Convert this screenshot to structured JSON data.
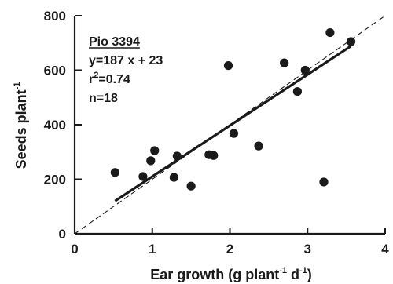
{
  "chart_data": {
    "type": "scatter",
    "x_label": {
      "main": "Ear growth (g plant",
      "sup1": "-1",
      "mid": " d",
      "sup2": "-1",
      "end": ")"
    },
    "y_label": {
      "main": "Seeds plant",
      "sup": "-1"
    },
    "xlim": [
      0,
      4
    ],
    "ylim": [
      0,
      800
    ],
    "x_ticks": [
      0,
      1,
      2,
      3,
      4
    ],
    "x_tick_labels": [
      "0",
      "1",
      "2",
      "3",
      "4"
    ],
    "y_ticks": [
      0,
      200,
      400,
      600,
      800
    ],
    "y_tick_labels": [
      "0",
      "200",
      "400",
      "600",
      "800"
    ],
    "points": [
      {
        "x": 0.52,
        "y": 225
      },
      {
        "x": 0.88,
        "y": 210
      },
      {
        "x": 0.98,
        "y": 268
      },
      {
        "x": 1.03,
        "y": 305
      },
      {
        "x": 1.28,
        "y": 207
      },
      {
        "x": 1.32,
        "y": 285
      },
      {
        "x": 1.5,
        "y": 175
      },
      {
        "x": 1.73,
        "y": 290
      },
      {
        "x": 1.79,
        "y": 287
      },
      {
        "x": 1.98,
        "y": 617
      },
      {
        "x": 2.05,
        "y": 368
      },
      {
        "x": 2.37,
        "y": 322
      },
      {
        "x": 2.7,
        "y": 627
      },
      {
        "x": 2.87,
        "y": 522
      },
      {
        "x": 2.97,
        "y": 600
      },
      {
        "x": 3.21,
        "y": 190
      },
      {
        "x": 3.29,
        "y": 738
      },
      {
        "x": 3.56,
        "y": 705
      }
    ],
    "regression": {
      "slope": 187,
      "intercept": 23,
      "x_range": [
        0.52,
        3.56
      ]
    },
    "one_to_one": {
      "from": [
        0,
        0
      ],
      "to": [
        4,
        800
      ]
    },
    "annotation": {
      "cultivar": "Pio 3394",
      "equation": "y=187 x + 23",
      "r2_prefix": "r",
      "r2_sup": "2",
      "r2_value": "=0.74",
      "n": "n=18"
    },
    "colors": {
      "ink": "#1a1a1a",
      "background": "#ffffff"
    }
  }
}
